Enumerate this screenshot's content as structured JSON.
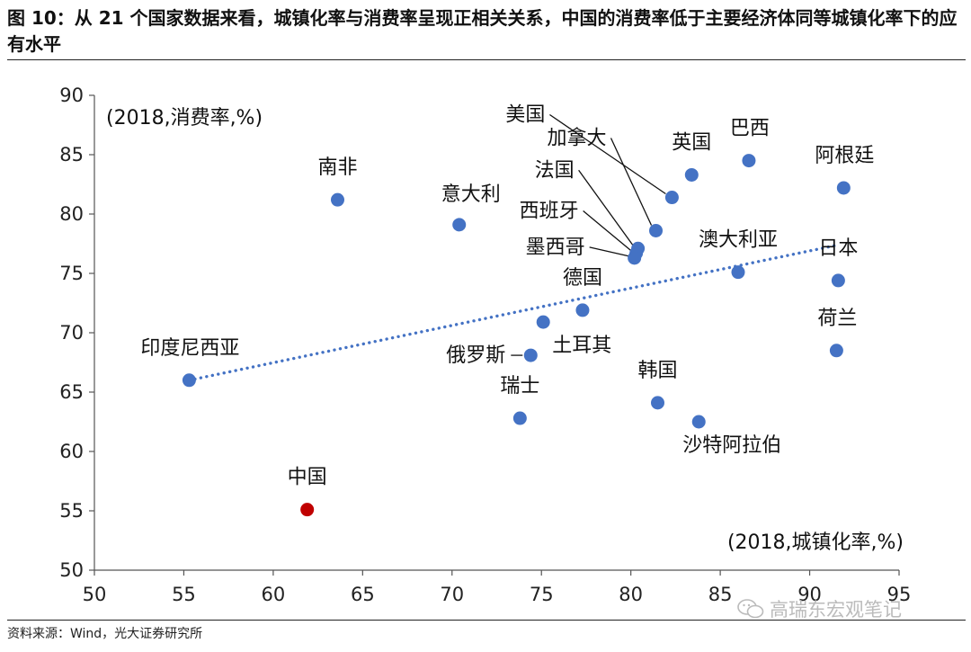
{
  "header": {
    "title": "图 10：从 21 个国家数据来看，城镇化率与消费率呈现正相关关系，中国的消费率低于主要经济体同等城镇化率下的应有水平"
  },
  "footer": {
    "source": "资料来源：Wind，光大证券研究所",
    "watermark": "高瑞东宏观笔记",
    "watermark_icon": "wechat-icon"
  },
  "chart_data": {
    "type": "scatter",
    "xlim": [
      50,
      95
    ],
    "ylim": [
      50,
      90
    ],
    "xticks": [
      50,
      55,
      60,
      65,
      70,
      75,
      80,
      85,
      90,
      95
    ],
    "yticks": [
      50,
      55,
      60,
      65,
      70,
      75,
      80,
      85,
      90
    ],
    "xlabel": "(2018,城镇化率,%)",
    "ylabel": "(2018,消费率,%)",
    "grid": false,
    "colors": {
      "points": "#4472C4",
      "highlight": "#C00000",
      "trendline": "#4472C4"
    },
    "points": [
      {
        "name": "南非",
        "x": 63.6,
        "y": 81.2
      },
      {
        "name": "意大利",
        "x": 70.4,
        "y": 79.1
      },
      {
        "name": "美国",
        "x": 82.3,
        "y": 81.4
      },
      {
        "name": "加拿大",
        "x": 81.4,
        "y": 78.6
      },
      {
        "name": "法国",
        "x": 80.4,
        "y": 77.1
      },
      {
        "name": "西班牙",
        "x": 80.3,
        "y": 76.7
      },
      {
        "name": "墨西哥",
        "x": 80.2,
        "y": 76.3
      },
      {
        "name": "英国",
        "x": 83.4,
        "y": 83.3
      },
      {
        "name": "巴西",
        "x": 86.6,
        "y": 84.5
      },
      {
        "name": "阿根廷",
        "x": 91.9,
        "y": 82.2
      },
      {
        "name": "澳大利亚",
        "x": 86.0,
        "y": 75.1
      },
      {
        "name": "日本",
        "x": 91.6,
        "y": 74.4
      },
      {
        "name": "德国",
        "x": 77.3,
        "y": 71.9
      },
      {
        "name": "土耳其",
        "x": 75.1,
        "y": 70.9
      },
      {
        "name": "俄罗斯",
        "x": 74.4,
        "y": 68.1
      },
      {
        "name": "荷兰",
        "x": 91.5,
        "y": 68.5
      },
      {
        "name": "印度尼西亚",
        "x": 55.3,
        "y": 66.0
      },
      {
        "name": "瑞士",
        "x": 73.8,
        "y": 62.8
      },
      {
        "name": "韩国",
        "x": 81.5,
        "y": 64.1
      },
      {
        "name": "沙特阿拉伯",
        "x": 83.8,
        "y": 62.5
      },
      {
        "name": "中国",
        "x": 61.9,
        "y": 55.1,
        "highlight": true
      }
    ],
    "trendline": {
      "style": "dotted",
      "x": [
        55.3,
        91.6
      ],
      "y": [
        66.0,
        77.4
      ]
    }
  }
}
